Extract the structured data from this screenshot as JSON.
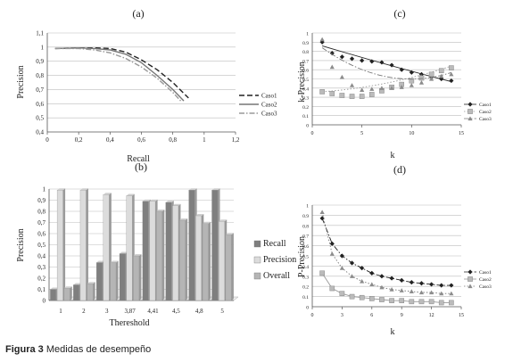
{
  "caption": {
    "label": "Figura 3",
    "text": "Medidas de desempeño"
  },
  "chart_data": [
    {
      "id": "a",
      "panel_label": "(a)",
      "type": "line",
      "xlabel": "Recall",
      "ylabel": "Precision",
      "xlim": [
        0,
        1.2
      ],
      "ylim": [
        0.4,
        1.1
      ],
      "xticks": [
        "0",
        "0,2",
        "0,4",
        "0,6",
        "0,8",
        "1",
        "1,2"
      ],
      "yticks": [
        "0,4",
        "0,5",
        "0,6",
        "0,7",
        "0,8",
        "0,9",
        "1",
        "1,1"
      ],
      "grid": "horizontal",
      "legend_position": "right",
      "series": [
        {
          "name": "Caso1",
          "style": "dashed",
          "color": "#222222",
          "x": [
            0.05,
            0.2,
            0.3,
            0.4,
            0.5,
            0.6,
            0.7,
            0.8,
            0.9
          ],
          "y": [
            0.99,
            0.995,
            0.995,
            0.99,
            0.965,
            0.91,
            0.84,
            0.75,
            0.64
          ]
        },
        {
          "name": "Caso2",
          "style": "solid",
          "color": "#777777",
          "x": [
            0.05,
            0.2,
            0.3,
            0.4,
            0.5,
            0.6,
            0.7,
            0.8,
            0.87
          ],
          "y": [
            0.99,
            0.995,
            0.99,
            0.98,
            0.95,
            0.89,
            0.8,
            0.7,
            0.62
          ]
        },
        {
          "name": "Caso3",
          "style": "dashdot",
          "color": "#999999",
          "x": [
            0.05,
            0.2,
            0.3,
            0.4,
            0.5,
            0.6,
            0.7,
            0.8,
            0.85
          ],
          "y": [
            0.99,
            0.99,
            0.98,
            0.96,
            0.92,
            0.86,
            0.78,
            0.68,
            0.62
          ]
        }
      ]
    },
    {
      "id": "b",
      "panel_label": "(b)",
      "type": "bar",
      "xlabel": "Thereshold",
      "ylabel": "Precision",
      "ylim": [
        0,
        1
      ],
      "yticks": [
        "0",
        "0,1",
        "0,2",
        "0,3",
        "0,4",
        "0,5",
        "0,6",
        "0,7",
        "0,8",
        "0,9",
        "1"
      ],
      "categories": [
        "1",
        "2",
        "3",
        "3,87",
        "4,41",
        "4,5",
        "4,8",
        "5"
      ],
      "grid": "horizontal",
      "legend_position": "right",
      "series": [
        {
          "name": "Recall",
          "color": "#7f7f7f",
          "values": [
            0.1,
            0.14,
            0.34,
            0.42,
            0.89,
            0.88,
            0.99,
            0.99
          ]
        },
        {
          "name": "Precision",
          "color": "#dcdcdc",
          "values": [
            0.99,
            0.99,
            0.95,
            0.94,
            0.89,
            0.85,
            0.76,
            0.71
          ]
        },
        {
          "name": "Overall",
          "color": "#b5b5b5",
          "values": [
            0.11,
            0.15,
            0.34,
            0.4,
            0.8,
            0.72,
            0.69,
            0.59
          ]
        }
      ]
    },
    {
      "id": "c",
      "panel_label": "(c)",
      "type": "scatter",
      "xlabel": "k",
      "ylabel": "k-Precision",
      "xlim": [
        0,
        15
      ],
      "ylim": [
        0,
        1
      ],
      "xticks": [
        "0",
        "5",
        "10",
        "15"
      ],
      "yticks": [
        "0",
        "0.1",
        "0.2",
        "0.3",
        "0.4",
        "0.5",
        "0.6",
        "0.7",
        "0.8",
        "0.9",
        "1"
      ],
      "grid": "horizontal",
      "legend_position": "right",
      "series": [
        {
          "name": "Caso1",
          "marker": "diamond",
          "line": "solid",
          "color": "#222222",
          "x": [
            1,
            2,
            3,
            4,
            5,
            6,
            7,
            8,
            9,
            10,
            11,
            12,
            13,
            14
          ],
          "y": [
            0.9,
            0.78,
            0.74,
            0.72,
            0.7,
            0.69,
            0.68,
            0.65,
            0.6,
            0.57,
            0.55,
            0.52,
            0.5,
            0.48
          ],
          "trend": [
            0.86,
            0.47
          ]
        },
        {
          "name": "Caso2",
          "marker": "square",
          "line": "dotted",
          "color": "#999999",
          "x": [
            1,
            2,
            3,
            4,
            5,
            6,
            7,
            8,
            9,
            10,
            11,
            12,
            13,
            14
          ],
          "y": [
            0.36,
            0.34,
            0.32,
            0.31,
            0.31,
            0.33,
            0.37,
            0.41,
            0.44,
            0.48,
            0.51,
            0.55,
            0.59,
            0.62
          ],
          "trend": [
            0.36,
            0.64
          ]
        },
        {
          "name": "Caso3",
          "marker": "triangle",
          "line": "dashdot",
          "color": "#777777",
          "x": [
            1,
            2,
            3,
            4,
            5,
            6,
            7,
            8,
            9,
            10,
            11,
            12,
            13,
            14
          ],
          "y": [
            0.93,
            0.63,
            0.52,
            0.43,
            0.38,
            0.39,
            0.4,
            0.4,
            0.41,
            0.43,
            0.46,
            0.5,
            0.53,
            0.55
          ],
          "trend": [
            0.84,
            0.57
          ]
        }
      ]
    },
    {
      "id": "d",
      "panel_label": "(d)",
      "type": "scatter",
      "xlabel": "k",
      "ylabel": "P-Precision",
      "xlim": [
        0,
        15
      ],
      "ylim": [
        0,
        1
      ],
      "xticks": [
        "0",
        "3",
        "6",
        "9",
        "12",
        "15"
      ],
      "yticks": [
        "0",
        "0.1",
        "0.2",
        "0.3",
        "0.4",
        "0.5",
        "0.6",
        "0.7",
        "0.8",
        "0.9",
        "1"
      ],
      "grid": "horizontal",
      "legend_position": "right",
      "series": [
        {
          "name": "Caso1",
          "marker": "diamond",
          "line": "dashdot",
          "color": "#222222",
          "x": [
            1,
            2,
            3,
            4,
            5,
            6,
            7,
            8,
            9,
            10,
            11,
            12,
            13,
            14
          ],
          "y": [
            0.87,
            0.62,
            0.5,
            0.43,
            0.38,
            0.33,
            0.3,
            0.28,
            0.26,
            0.24,
            0.23,
            0.22,
            0.21,
            0.21
          ]
        },
        {
          "name": "Caso2",
          "marker": "square",
          "line": "solid",
          "color": "#999999",
          "x": [
            1,
            2,
            3,
            4,
            5,
            6,
            7,
            8,
            9,
            10,
            11,
            12,
            13,
            14
          ],
          "y": [
            0.33,
            0.18,
            0.13,
            0.1,
            0.09,
            0.08,
            0.07,
            0.06,
            0.06,
            0.05,
            0.05,
            0.05,
            0.04,
            0.04
          ]
        },
        {
          "name": "Caso3",
          "marker": "triangle",
          "line": "dotted",
          "color": "#777777",
          "x": [
            1,
            2,
            3,
            4,
            5,
            6,
            7,
            8,
            9,
            10,
            11,
            12,
            13,
            14
          ],
          "y": [
            0.93,
            0.52,
            0.38,
            0.3,
            0.25,
            0.22,
            0.19,
            0.17,
            0.16,
            0.15,
            0.14,
            0.14,
            0.13,
            0.13
          ]
        }
      ]
    }
  ]
}
